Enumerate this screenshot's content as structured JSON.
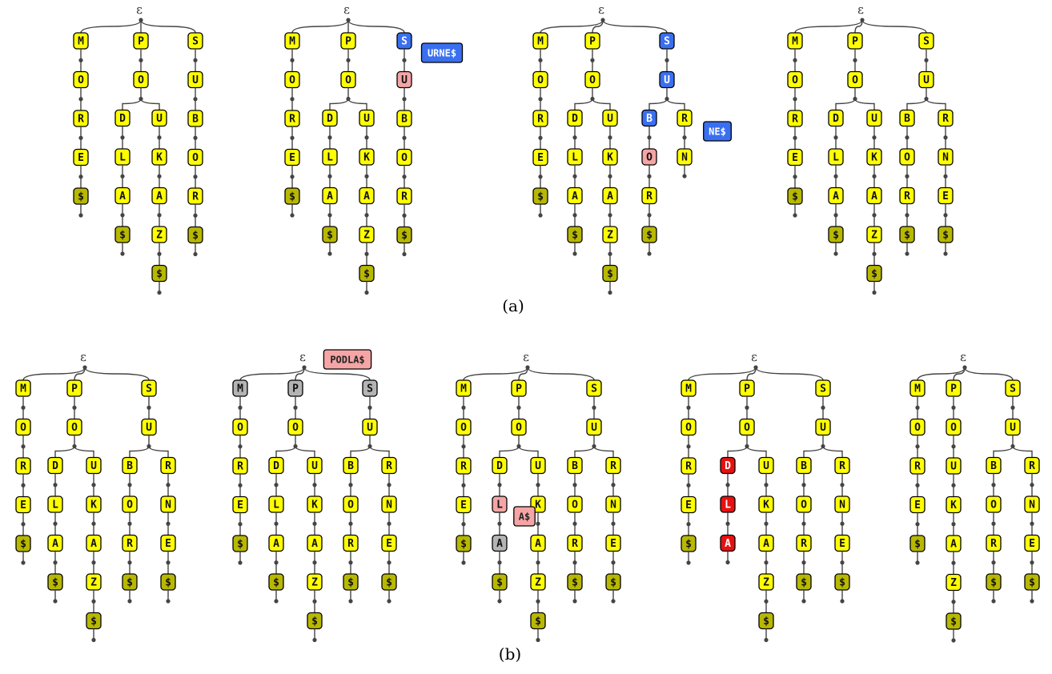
{
  "colors": {
    "yellow": "#ffff00",
    "olive": "#b8b800",
    "blue": "#3a6ff0",
    "pink": "#f5a5a5",
    "gray": "#b4b4b4",
    "red": "#e81010",
    "edge": "#444444"
  },
  "captions": {
    "a": "(a)",
    "b": "(b)"
  },
  "tries": [
    {
      "root": "ε",
      "branches": [
        [
          "M",
          "O",
          "R",
          "E",
          "$"
        ],
        [
          "P",
          "O",
          [
            "D",
            "L",
            "A",
            "$"
          ],
          [
            "U",
            "K",
            "A",
            "Z",
            "$"
          ]
        ],
        [
          "S",
          "U",
          "B",
          "O",
          "R",
          "$"
        ]
      ],
      "highlights": [],
      "tags": []
    },
    {
      "root": "ε",
      "branches": [
        [
          "M",
          "O",
          "R",
          "E",
          "$"
        ],
        [
          "P",
          "O",
          [
            "D",
            "L",
            "A",
            "$"
          ],
          [
            "U",
            "K",
            "A",
            "Z",
            "$"
          ]
        ],
        [
          "S",
          "U",
          "B",
          "O",
          "R",
          "$"
        ]
      ],
      "highlights": [
        {
          "path": [
            2,
            0
          ],
          "color": "blue"
        },
        {
          "path": [
            2,
            1
          ],
          "color": "pink"
        }
      ],
      "tags": [
        {
          "text": "URNE$",
          "color": "blue"
        }
      ]
    },
    {
      "root": "ε",
      "branches": [
        [
          "M",
          "O",
          "R",
          "E",
          "$"
        ],
        [
          "P",
          "O",
          [
            "D",
            "L",
            "A",
            "$"
          ],
          [
            "U",
            "K",
            "A",
            "Z",
            "$"
          ]
        ],
        [
          "S",
          "U",
          [
            "B",
            "O",
            "R",
            "$"
          ],
          [
            "R",
            "N"
          ]
        ]
      ],
      "highlights": [
        {
          "path": [
            2,
            0
          ],
          "color": "blue"
        },
        {
          "path": [
            2,
            1
          ],
          "color": "blue"
        },
        {
          "path": [
            2,
            2,
            0
          ],
          "color": "blue"
        },
        {
          "path": [
            2,
            2,
            1
          ],
          "color": "pink"
        }
      ],
      "tags": [
        {
          "text": "NE$",
          "color": "blue"
        }
      ]
    },
    {
      "root": "ε",
      "branches": [
        [
          "M",
          "O",
          "R",
          "E",
          "$"
        ],
        [
          "P",
          "O",
          [
            "D",
            "L",
            "A",
            "$"
          ],
          [
            "U",
            "K",
            "A",
            "Z",
            "$"
          ]
        ],
        [
          "S",
          "U",
          [
            "B",
            "O",
            "R",
            "$"
          ],
          [
            "R",
            "N",
            "E",
            "$"
          ]
        ]
      ],
      "highlights": [],
      "tags": []
    },
    {
      "root": "ε",
      "branches": [
        [
          "M",
          "O",
          "R",
          "E",
          "$"
        ],
        [
          "P",
          "O",
          [
            "D",
            "L",
            "A",
            "$"
          ],
          [
            "U",
            "K",
            "A",
            "Z",
            "$"
          ]
        ],
        [
          "S",
          "U",
          [
            "B",
            "O",
            "R",
            "$"
          ],
          [
            "R",
            "N",
            "E",
            "$"
          ]
        ]
      ],
      "highlights": [],
      "tags": []
    },
    {
      "root": "ε",
      "branches": [
        [
          "M",
          "O",
          "R",
          "E",
          "$"
        ],
        [
          "P",
          "O",
          [
            "D",
            "L",
            "A",
            "$"
          ],
          [
            "U",
            "K",
            "A",
            "Z",
            "$"
          ]
        ],
        [
          "S",
          "U",
          [
            "B",
            "O",
            "R",
            "$"
          ],
          [
            "R",
            "N",
            "E",
            "$"
          ]
        ]
      ],
      "highlights": [
        {
          "path": [
            0,
            0
          ],
          "color": "gray"
        },
        {
          "path": [
            1,
            0
          ],
          "color": "gray"
        },
        {
          "path": [
            2,
            0
          ],
          "color": "gray"
        }
      ],
      "tags": [
        {
          "text": "PODLA$",
          "color": "pink"
        }
      ]
    },
    {
      "root": "ε",
      "branches": [
        [
          "M",
          "O",
          "R",
          "E",
          "$"
        ],
        [
          "P",
          "O",
          [
            "D",
            "L",
            "A",
            "$"
          ],
          [
            "U",
            "K",
            "A",
            "Z",
            "$"
          ]
        ],
        [
          "S",
          "U",
          [
            "B",
            "O",
            "R",
            "$"
          ],
          [
            "R",
            "N",
            "E",
            "$"
          ]
        ]
      ],
      "highlights": [
        {
          "path": [
            1,
            2,
            1
          ],
          "color": "pink"
        },
        {
          "path": [
            1,
            2,
            2
          ],
          "color": "gray"
        }
      ],
      "tags": [
        {
          "text": "A$",
          "color": "pink"
        }
      ]
    },
    {
      "root": "ε",
      "branches": [
        [
          "M",
          "O",
          "R",
          "E",
          "$"
        ],
        [
          "P",
          "O",
          [
            "D",
            "L",
            "A"
          ],
          [
            "U",
            "K",
            "A",
            "Z",
            "$"
          ]
        ],
        [
          "S",
          "U",
          [
            "B",
            "O",
            "R",
            "$"
          ],
          [
            "R",
            "N",
            "E",
            "$"
          ]
        ]
      ],
      "highlights": [
        {
          "path": [
            1,
            2,
            0
          ],
          "color": "red"
        },
        {
          "path": [
            1,
            2,
            1
          ],
          "color": "red"
        },
        {
          "path": [
            1,
            2,
            2
          ],
          "color": "red"
        }
      ],
      "tags": []
    },
    {
      "root": "ε",
      "branches": [
        [
          "M",
          "O",
          "R",
          "E",
          "$"
        ],
        [
          "P",
          "O",
          "U",
          "K",
          "A",
          "Z",
          "$"
        ],
        [
          "S",
          "U",
          [
            "B",
            "O",
            "R",
            "$"
          ],
          [
            "R",
            "N",
            "E",
            "$"
          ]
        ]
      ],
      "highlights": [],
      "tags": []
    }
  ]
}
